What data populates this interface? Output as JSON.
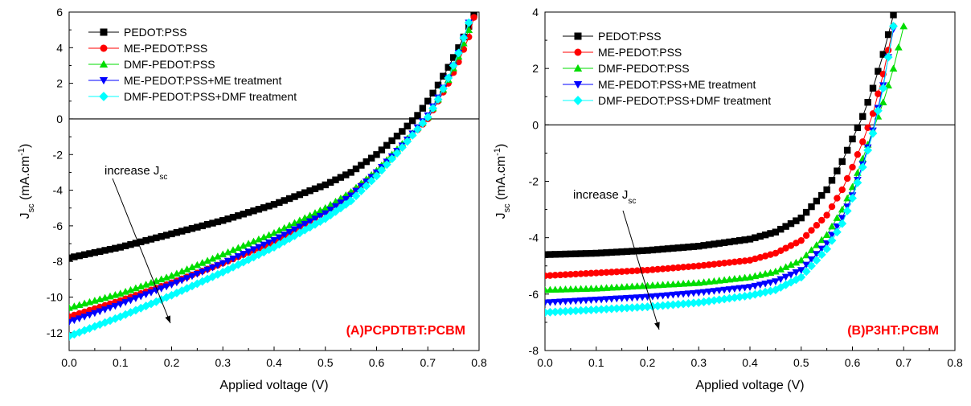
{
  "colors": {
    "PEDOT:PSS": "#000000",
    "ME-PEDOT:PSS": "#ff0000",
    "DMF-PEDOT:PSS": "#00dd00",
    "ME-PEDOT:PSS+ME treatment": "#0000ff",
    "DMF-PEDOT:PSS+DMF treatment": "#00ffff",
    "panel_label": "#ff0000"
  },
  "markers": {
    "PEDOT:PSS": "square",
    "ME-PEDOT:PSS": "circle",
    "DMF-PEDOT:PSS": "triangle-up",
    "ME-PEDOT:PSS+ME treatment": "triangle-down",
    "DMF-PEDOT:PSS+DMF treatment": "diamond"
  },
  "chart_data": [
    {
      "type": "scatter",
      "panel_label": "(A)PCPDTBT:PCBM",
      "xlabel": "Applied voltage (V)",
      "ylabel": "J",
      "ylabel_sub": "sc",
      "ylabel_unit": " (mA.cm",
      "ylabel_sup": "-1",
      "ylabel_end": ")",
      "xlim": [
        0.0,
        0.8
      ],
      "ylim": [
        -13,
        6
      ],
      "xticks": [
        0.0,
        0.1,
        0.2,
        0.3,
        0.4,
        0.5,
        0.6,
        0.7,
        0.8
      ],
      "yticks": [
        -12,
        -10,
        -8,
        -6,
        -4,
        -2,
        0,
        2,
        4,
        6
      ],
      "zero_line": true,
      "grid": false,
      "legend_position": "top-left",
      "annotation": {
        "text": "increase J",
        "sub": "sc",
        "arrow": true
      },
      "series": [
        {
          "name": "PEDOT:PSS",
          "x": [
            0.0,
            0.1,
            0.2,
            0.3,
            0.4,
            0.5,
            0.55,
            0.6,
            0.65,
            0.68,
            0.7,
            0.72,
            0.74,
            0.76,
            0.78,
            0.79
          ],
          "y": [
            -7.8,
            -7.2,
            -6.45,
            -5.7,
            -4.8,
            -3.7,
            -3.0,
            -2.0,
            -0.7,
            0.2,
            1.0,
            1.9,
            2.9,
            4.0,
            5.2,
            5.9
          ]
        },
        {
          "name": "ME-PEDOT:PSS",
          "x": [
            0.0,
            0.1,
            0.2,
            0.3,
            0.4,
            0.5,
            0.55,
            0.6,
            0.65,
            0.7,
            0.72,
            0.74,
            0.76,
            0.78,
            0.79
          ],
          "y": [
            -11.1,
            -10.2,
            -9.2,
            -8.1,
            -6.9,
            -5.2,
            -4.2,
            -3.0,
            -1.5,
            0.0,
            1.0,
            2.0,
            3.2,
            4.6,
            5.7
          ]
        },
        {
          "name": "DMF-PEDOT:PSS",
          "x": [
            0.0,
            0.1,
            0.2,
            0.3,
            0.4,
            0.5,
            0.55,
            0.6,
            0.65,
            0.7,
            0.72,
            0.74,
            0.76,
            0.78
          ],
          "y": [
            -10.6,
            -9.8,
            -8.8,
            -7.6,
            -6.4,
            -5.0,
            -4.1,
            -2.9,
            -1.4,
            0.1,
            1.1,
            2.2,
            3.5,
            5.0
          ]
        },
        {
          "name": "ME-PEDOT:PSS+ME treatment",
          "x": [
            0.0,
            0.1,
            0.2,
            0.3,
            0.4,
            0.5,
            0.55,
            0.6,
            0.65,
            0.7,
            0.72,
            0.74,
            0.76,
            0.78
          ],
          "y": [
            -11.4,
            -10.4,
            -9.3,
            -8.1,
            -6.8,
            -5.3,
            -4.3,
            -3.0,
            -1.5,
            0.2,
            1.2,
            2.3,
            3.7,
            5.4
          ]
        },
        {
          "name": "DMF-PEDOT:PSS+DMF treatment",
          "x": [
            0.0,
            0.1,
            0.2,
            0.3,
            0.4,
            0.5,
            0.55,
            0.6,
            0.65,
            0.7,
            0.72,
            0.74,
            0.76,
            0.78
          ],
          "y": [
            -12.2,
            -11.1,
            -9.9,
            -8.6,
            -7.2,
            -5.6,
            -4.6,
            -3.2,
            -1.6,
            0.1,
            1.1,
            2.3,
            3.7,
            5.4
          ]
        }
      ]
    },
    {
      "type": "scatter",
      "panel_label": "(B)P3HT:PCBM",
      "xlabel": "Applied voltage (V)",
      "ylabel": "J",
      "ylabel_sub": "sc",
      "ylabel_unit": " (mA.cm",
      "ylabel_sup": "-1",
      "ylabel_end": ")",
      "xlim": [
        0.0,
        0.8
      ],
      "ylim": [
        -8,
        4
      ],
      "xticks": [
        0.0,
        0.1,
        0.2,
        0.3,
        0.4,
        0.5,
        0.6,
        0.7,
        0.8
      ],
      "yticks": [
        -8,
        -6,
        -4,
        -2,
        0,
        2,
        4
      ],
      "zero_line": true,
      "grid": false,
      "legend_position": "top-left",
      "annotation": {
        "text": "increase J",
        "sub": "sc",
        "arrow": true
      },
      "series": [
        {
          "name": "PEDOT:PSS",
          "x": [
            0.0,
            0.1,
            0.2,
            0.3,
            0.4,
            0.45,
            0.5,
            0.55,
            0.58,
            0.6,
            0.62,
            0.64,
            0.66,
            0.68
          ],
          "y": [
            -4.6,
            -4.55,
            -4.45,
            -4.3,
            -4.05,
            -3.8,
            -3.3,
            -2.3,
            -1.3,
            -0.5,
            0.3,
            1.3,
            2.5,
            3.9
          ]
        },
        {
          "name": "ME-PEDOT:PSS",
          "x": [
            0.0,
            0.1,
            0.2,
            0.3,
            0.4,
            0.45,
            0.5,
            0.55,
            0.58,
            0.6,
            0.62,
            0.64,
            0.66,
            0.68
          ],
          "y": [
            -5.35,
            -5.25,
            -5.15,
            -5.0,
            -4.8,
            -4.55,
            -4.1,
            -3.2,
            -2.3,
            -1.5,
            -0.6,
            0.4,
            1.8,
            3.5
          ]
        },
        {
          "name": "DMF-PEDOT:PSS",
          "x": [
            0.0,
            0.1,
            0.2,
            0.3,
            0.4,
            0.45,
            0.5,
            0.55,
            0.58,
            0.6,
            0.62,
            0.64,
            0.66,
            0.68,
            0.7
          ],
          "y": [
            -5.85,
            -5.8,
            -5.7,
            -5.6,
            -5.4,
            -5.2,
            -4.8,
            -3.9,
            -3.0,
            -2.2,
            -1.2,
            -0.2,
            0.8,
            2.0,
            3.5
          ]
        },
        {
          "name": "ME-PEDOT:PSS+ME treatment",
          "x": [
            0.0,
            0.1,
            0.2,
            0.3,
            0.4,
            0.45,
            0.5,
            0.55,
            0.58,
            0.6,
            0.62,
            0.64,
            0.66,
            0.68
          ],
          "y": [
            -6.3,
            -6.2,
            -6.1,
            -5.95,
            -5.75,
            -5.55,
            -5.15,
            -4.2,
            -3.3,
            -2.5,
            -1.4,
            -0.2,
            1.4,
            3.4
          ]
        },
        {
          "name": "DMF-PEDOT:PSS+DMF treatment",
          "x": [
            0.0,
            0.1,
            0.2,
            0.3,
            0.4,
            0.45,
            0.5,
            0.55,
            0.58,
            0.6,
            0.62,
            0.64,
            0.66,
            0.68
          ],
          "y": [
            -6.65,
            -6.55,
            -6.45,
            -6.3,
            -6.05,
            -5.85,
            -5.4,
            -4.4,
            -3.5,
            -2.6,
            -1.5,
            -0.3,
            1.3,
            3.5
          ]
        }
      ]
    }
  ]
}
